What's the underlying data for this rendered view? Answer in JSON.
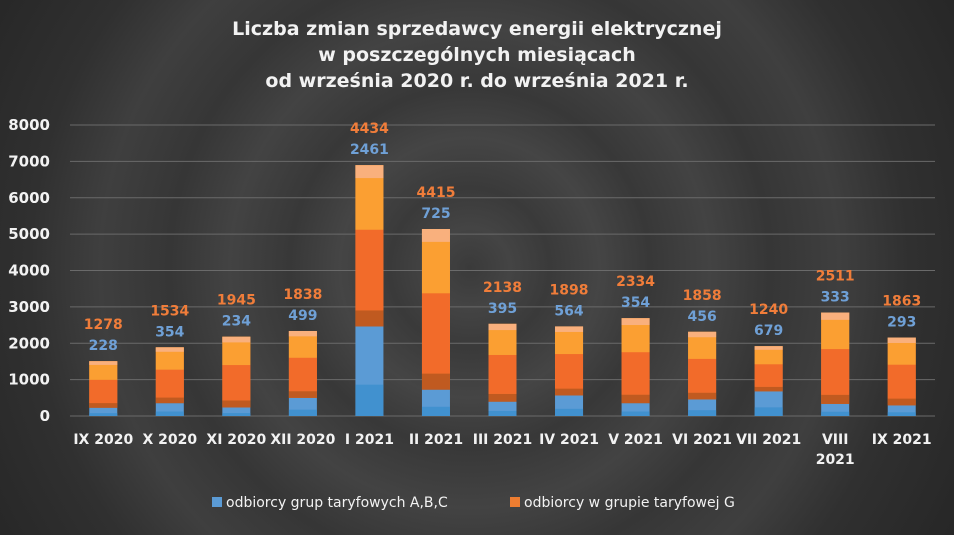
{
  "chart_data": {
    "type": "bar",
    "stacked": true,
    "title_lines": [
      "Liczba zmian sprzedawcy energii elektrycznej",
      "w poszczególnych miesiącach",
      "od września 2020 r. do września 2021 r."
    ],
    "categories": [
      [
        "IX 2020"
      ],
      [
        "X 2020"
      ],
      [
        "XI 2020"
      ],
      [
        "XII 2020"
      ],
      [
        "I 2021"
      ],
      [
        "II 2021"
      ],
      [
        "III 2021"
      ],
      [
        "IV 2021"
      ],
      [
        "V 2021"
      ],
      [
        "VI 2021"
      ],
      [
        "VII 2021"
      ],
      [
        "VIII",
        "2021"
      ],
      [
        "IX 2021"
      ]
    ],
    "yticks": [
      "0",
      "1000",
      "2000",
      "3000",
      "4000",
      "5000",
      "6000",
      "7000",
      "8000"
    ],
    "ylim": [
      0,
      8000
    ],
    "grid": true,
    "legend_position": "bottom",
    "series": [
      {
        "name": "odbiorcy grup taryfowych A,B,C",
        "color": "#5b9bd5",
        "values": [
          228,
          354,
          234,
          499,
          2461,
          725,
          395,
          564,
          354,
          456,
          679,
          333,
          293
        ],
        "labels": [
          "228",
          "354",
          "234",
          "499",
          "2461",
          "725",
          "395",
          "564",
          "354",
          "456",
          "679",
          "333",
          "293"
        ]
      },
      {
        "name": "odbiorcy w grupie taryfowej G",
        "color": "#ed7d31",
        "values": [
          1278,
          1534,
          1945,
          1838,
          4434,
          4415,
          2138,
          1898,
          2334,
          1858,
          1240,
          2511,
          1863
        ],
        "labels": [
          "1278",
          "1534",
          "1945",
          "1838",
          "4434",
          "4415",
          "2138",
          "1898",
          "2334",
          "1858",
          "1240",
          "2511",
          "1863"
        ]
      }
    ]
  }
}
